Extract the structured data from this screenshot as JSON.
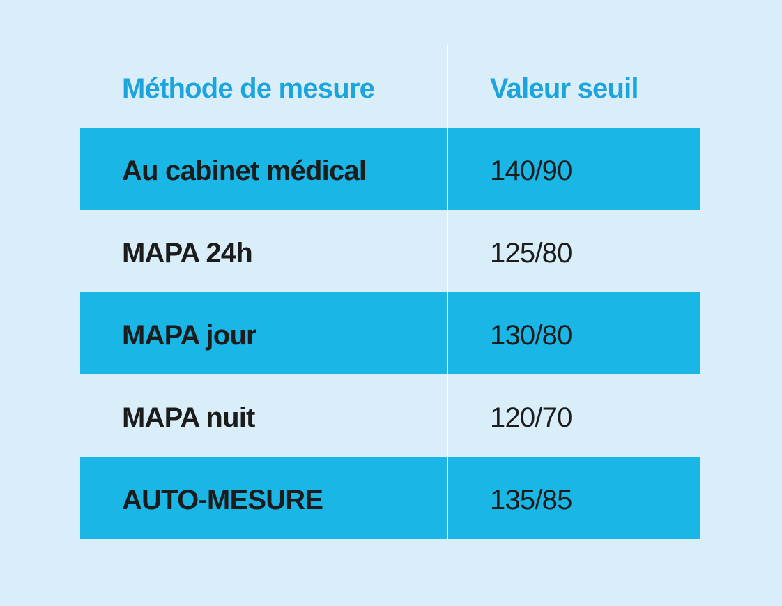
{
  "table": {
    "header": [
      "Méthode de mesure",
      "Valeur seuil"
    ],
    "rows": [
      [
        "Au cabinet médical",
        "140/90"
      ],
      [
        "MAPA 24h",
        "125/80"
      ],
      [
        "MAPA jour",
        "130/80"
      ],
      [
        "MAPA nuit",
        "120/70"
      ],
      [
        "AUTO-MESURE",
        "135/85"
      ]
    ]
  }
}
